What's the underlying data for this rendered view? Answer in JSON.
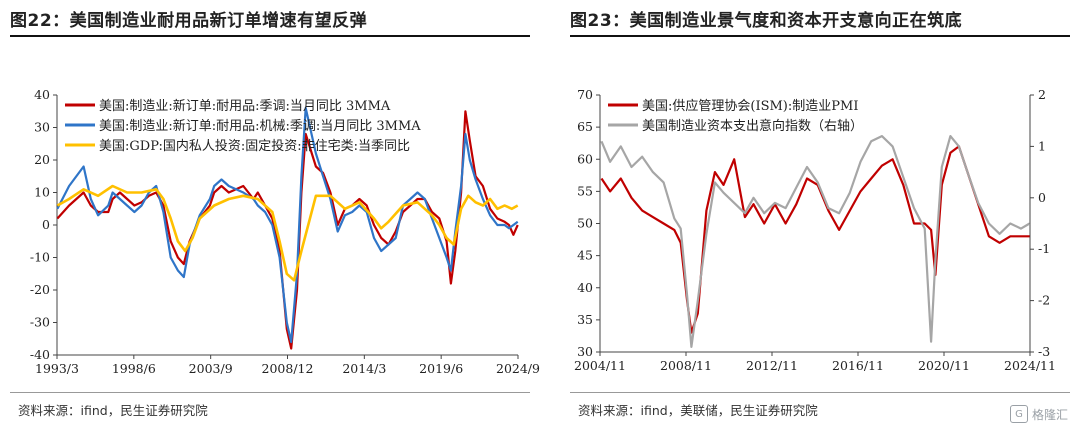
{
  "left": {
    "title": "图22：美国制造业耐用品新订单增速有望反弹",
    "source": "资料来源：ifind，民生证券研究院"
  },
  "right": {
    "title": "图23：美国制造业景气度和资本开支意向正在筑底",
    "source": "资料来源：ifind，美联储，民生证券研究院"
  },
  "watermark": {
    "icon": "gelonghui-logo-icon",
    "text": "格隆汇"
  },
  "chart_data": [
    {
      "type": "line",
      "ylim": [
        -40,
        40
      ],
      "yticks": [
        -40,
        -30,
        -20,
        -10,
        0,
        10,
        20,
        30,
        40
      ],
      "xlim": [
        1993.17,
        2024.92
      ],
      "xtick_labels": [
        "1993/3",
        "1998/6",
        "2003/9",
        "2008/12",
        "2014/3",
        "2019/6",
        "2024/9"
      ],
      "legend_position": "top-left",
      "grid": false,
      "series": [
        {
          "name": "美国:制造业:新订单:耐用品:季调:当月同比 3MMA",
          "color": "#c00000",
          "x": [
            1993.2,
            1994,
            1995,
            1995.5,
            1996,
            1996.7,
            1997,
            1997.5,
            1998,
            1998.5,
            1999,
            1999.5,
            2000,
            2000.5,
            2001,
            2001.5,
            2001.9,
            2002.3,
            2003,
            2003.7,
            2004,
            2004.5,
            2005,
            2006,
            2006.7,
            2007,
            2007.5,
            2008,
            2008.5,
            2009,
            2009.3,
            2009.7,
            2010,
            2010.3,
            2011,
            2011.5,
            2012,
            2012.5,
            2013,
            2013.5,
            2014,
            2014.5,
            2015,
            2015.5,
            2016,
            2016.5,
            2017,
            2017.5,
            2018,
            2018.5,
            2019,
            2019.5,
            2020,
            2020.3,
            2020.6,
            2021,
            2021.3,
            2021.6,
            2022,
            2022.5,
            2023,
            2023.5,
            2024,
            2024.3,
            2024.6,
            2024.9
          ],
          "y": [
            2,
            6,
            10,
            6,
            4,
            4,
            8,
            10,
            8,
            6,
            7,
            9,
            10,
            6,
            -5,
            -10,
            -12,
            -5,
            2,
            6,
            10,
            12,
            10,
            12,
            8,
            10,
            6,
            2,
            -8,
            -32,
            -38,
            -20,
            10,
            28,
            18,
            16,
            10,
            0,
            5,
            6,
            8,
            6,
            0,
            -4,
            -6,
            -2,
            4,
            6,
            8,
            8,
            4,
            2,
            -5,
            -18,
            -8,
            10,
            35,
            26,
            15,
            12,
            5,
            2,
            1,
            0,
            -3,
            0
          ]
        },
        {
          "name": "美国:制造业:新订单:耐用品:机械:季调:当月同比 3MMA",
          "color": "#2f75c8",
          "x": [
            1993.2,
            1994,
            1995,
            1995.5,
            1996,
            1996.7,
            1997,
            1997.5,
            1998,
            1998.5,
            1999,
            1999.5,
            2000,
            2000.5,
            2001,
            2001.5,
            2001.9,
            2002.3,
            2003,
            2003.7,
            2004,
            2004.5,
            2005,
            2006,
            2006.7,
            2007,
            2007.5,
            2008,
            2008.5,
            2009,
            2009.3,
            2009.7,
            2010,
            2010.3,
            2011,
            2011.5,
            2012,
            2012.5,
            2013,
            2013.5,
            2014,
            2014.5,
            2015,
            2015.5,
            2016,
            2016.5,
            2017,
            2017.5,
            2018,
            2018.5,
            2019,
            2019.5,
            2020,
            2020.3,
            2020.6,
            2021,
            2021.3,
            2021.6,
            2022,
            2022.5,
            2023,
            2023.5,
            2024,
            2024.3,
            2024.6,
            2024.9
          ],
          "y": [
            5,
            12,
            18,
            8,
            3,
            6,
            10,
            8,
            6,
            4,
            6,
            10,
            12,
            4,
            -10,
            -14,
            -16,
            -6,
            3,
            8,
            12,
            14,
            12,
            10,
            8,
            6,
            4,
            0,
            -10,
            -30,
            -36,
            -15,
            15,
            36,
            22,
            15,
            8,
            -2,
            3,
            4,
            6,
            4,
            -4,
            -8,
            -6,
            -4,
            6,
            8,
            10,
            8,
            2,
            -4,
            -10,
            -14,
            -2,
            12,
            28,
            20,
            14,
            8,
            3,
            0,
            0,
            -1,
            0,
            1
          ]
        },
        {
          "name": "美国:GDP:国内私人投资:固定投资:非住宅类:当季同比",
          "color": "#ffc000",
          "x": [
            1993.2,
            1994,
            1995,
            1996,
            1997,
            1998,
            1999,
            2000,
            2000.5,
            2001,
            2001.5,
            2002,
            2002.5,
            2003,
            2004,
            2005,
            2006,
            2007,
            2008,
            2008.5,
            2009,
            2009.5,
            2010,
            2011,
            2012,
            2013,
            2014,
            2015,
            2015.5,
            2016,
            2017,
            2018,
            2019,
            2019.5,
            2020,
            2020.5,
            2021,
            2021.5,
            2022,
            2022.5,
            2023,
            2023.5,
            2024,
            2024.5,
            2024.9
          ],
          "y": [
            6,
            8,
            11,
            9,
            12,
            10,
            10,
            11,
            8,
            2,
            -5,
            -8,
            -4,
            2,
            6,
            8,
            9,
            8,
            4,
            -5,
            -15,
            -17,
            -8,
            9,
            9,
            5,
            7,
            2,
            -1,
            1,
            6,
            7,
            3,
            0,
            -4,
            -6,
            5,
            9,
            7,
            6,
            8,
            5,
            6,
            5,
            6
          ]
        }
      ]
    },
    {
      "type": "line",
      "ylim": [
        30,
        70
      ],
      "yticks": [
        30,
        35,
        40,
        45,
        50,
        55,
        60,
        65,
        70
      ],
      "y2lim": [
        -3,
        2
      ],
      "y2ticks": [
        -3,
        -2,
        -1,
        0,
        1,
        2
      ],
      "xlim": [
        2004.83,
        2024.92
      ],
      "xtick_labels": [
        "2004/11",
        "2008/11",
        "2012/11",
        "2016/11",
        "2020/11",
        "2024/11"
      ],
      "legend_position": "top-left",
      "grid": false,
      "series": [
        {
          "name": "美国:供应管理协会(ISM):制造业PMI",
          "axis": "left",
          "color": "#c00000",
          "x": [
            2004.9,
            2005.3,
            2005.8,
            2006.3,
            2006.8,
            2007.3,
            2007.8,
            2008.3,
            2008.6,
            2008.9,
            2009.1,
            2009.4,
            2009.8,
            2010.2,
            2010.6,
            2011.1,
            2011.6,
            2012.0,
            2012.5,
            2013.0,
            2013.5,
            2014.0,
            2014.5,
            2015.0,
            2015.5,
            2016.0,
            2016.5,
            2017.0,
            2017.5,
            2018.0,
            2018.5,
            2019.0,
            2019.5,
            2020.0,
            2020.3,
            2020.5,
            2020.8,
            2021.2,
            2021.6,
            2022.0,
            2022.5,
            2023.0,
            2023.5,
            2024.0,
            2024.5,
            2024.9
          ],
          "y": [
            57,
            55,
            57,
            54,
            52,
            51,
            50,
            49,
            47,
            38,
            33,
            36,
            52,
            58,
            56,
            60,
            51,
            53,
            50,
            53,
            50,
            53,
            57,
            56,
            52,
            49,
            52,
            55,
            57,
            59,
            60,
            56,
            50,
            50,
            49,
            42,
            56,
            61,
            62,
            58,
            53,
            48,
            47,
            48,
            48,
            48
          ]
        },
        {
          "name": "美国制造业资本支出意向指数（右轴）",
          "axis": "right",
          "color": "#a6a6a6",
          "x": [
            2004.9,
            2005.3,
            2005.8,
            2006.3,
            2006.8,
            2007.3,
            2007.8,
            2008.3,
            2008.6,
            2008.9,
            2009.1,
            2009.4,
            2009.8,
            2010.2,
            2010.6,
            2011.1,
            2011.6,
            2012.0,
            2012.5,
            2013.0,
            2013.5,
            2014.0,
            2014.5,
            2015.0,
            2015.5,
            2016.0,
            2016.5,
            2017.0,
            2017.5,
            2018.0,
            2018.5,
            2019.0,
            2019.5,
            2020.0,
            2020.3,
            2020.5,
            2020.8,
            2021.2,
            2021.6,
            2022.0,
            2022.5,
            2023.0,
            2023.5,
            2024.0,
            2024.5,
            2024.9
          ],
          "y": [
            1.1,
            0.7,
            1.0,
            0.6,
            0.8,
            0.5,
            0.3,
            -0.4,
            -0.6,
            -1.9,
            -2.9,
            -2.0,
            -0.7,
            0.3,
            0.1,
            -0.1,
            -0.3,
            0.0,
            -0.3,
            -0.1,
            -0.2,
            0.2,
            0.6,
            0.3,
            -0.2,
            -0.3,
            0.1,
            0.7,
            1.1,
            1.2,
            1.0,
            0.4,
            -0.2,
            -0.6,
            -2.8,
            -1.2,
            0.6,
            1.2,
            1.0,
            0.5,
            -0.1,
            -0.5,
            -0.7,
            -0.5,
            -0.6,
            -0.5
          ]
        }
      ]
    }
  ]
}
